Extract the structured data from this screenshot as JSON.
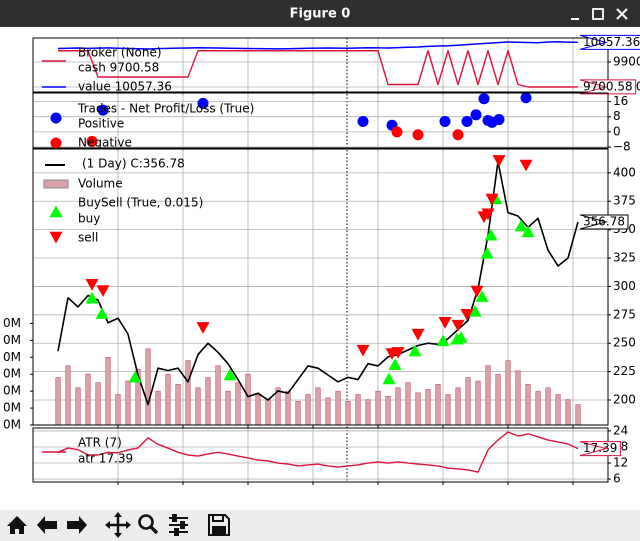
{
  "window_title": "Figure 0",
  "chart_data": [
    {
      "type": "line",
      "legend_title": "Broker (None)",
      "x": [
        0,
        2,
        4,
        6,
        8,
        10,
        12,
        14,
        16,
        18,
        20,
        22,
        24,
        26,
        28,
        30,
        32,
        34,
        36,
        38,
        40,
        42,
        44,
        46,
        48,
        50,
        52,
        54,
        56,
        58,
        60,
        62,
        64,
        66,
        68,
        70,
        72,
        74,
        76,
        78,
        80,
        82,
        84,
        86,
        88,
        90,
        92,
        94,
        96,
        98,
        100,
        102,
        104
      ],
      "xlim": [
        -5,
        110
      ],
      "xticks": [
        12,
        25,
        38,
        51,
        64,
        77,
        90,
        103
      ],
      "ylim": [
        9660,
        10092
      ],
      "yticks": [
        9700,
        9900
      ],
      "grid": true,
      "series": [
        {
          "name": "cash 9700.58",
          "color": "#dc143c",
          "end_label": true,
          "values": [
            9990,
            9990,
            9990,
            9990,
            9780,
            9780,
            9780,
            9780,
            9780,
            9780,
            9780,
            9780,
            9780,
            9780,
            9990,
            9990,
            9990,
            9990,
            9990,
            9990,
            9990,
            9990,
            9990,
            9990,
            9990,
            9990,
            9990,
            9990,
            9990,
            9990,
            9990,
            9990,
            9990,
            9720,
            9720,
            9720,
            9720,
            9990,
            9720,
            9990,
            9720,
            9990,
            9720,
            9990,
            9720,
            9990,
            9720,
            9700,
            9700,
            9700,
            9700,
            9700,
            9700.58
          ]
        },
        {
          "name": "value 10057.36",
          "color": "#0000ff",
          "end_label": true,
          "values": [
            10008,
            10010,
            10012,
            10009,
            10011,
            10013,
            10010,
            10008,
            10006,
            10004,
            10007,
            10009,
            10011,
            10012,
            10014,
            10013,
            10012,
            10010,
            10009,
            10008,
            10007,
            10006,
            10005,
            10006,
            10008,
            10010,
            10011,
            10012,
            10011,
            10010,
            10012,
            10014,
            10013,
            10012,
            10015,
            10018,
            10020,
            10025,
            10028,
            10030,
            10034,
            10040,
            10045,
            10050,
            10055,
            10060,
            10058,
            10056,
            10054,
            10060,
            10062,
            10059,
            10057.36
          ]
        }
      ]
    },
    {
      "type": "scatter",
      "legend_title": "Trades - Net Profit/Loss (True)",
      "xlim": [
        -5,
        110
      ],
      "xticks": [
        12,
        25,
        38,
        51,
        64,
        77,
        90,
        103
      ],
      "ylim": [
        -8.5,
        20.5
      ],
      "yticks": [
        {
          "value": -8,
          "label": "−8"
        },
        0,
        8,
        16
      ],
      "grid": true,
      "series": [
        {
          "name": "Positive",
          "color": "#0000ff",
          "x": [
            9,
            29,
            61,
            66.8,
            77.4,
            81.8,
            83.6,
            85.2,
            86,
            86.8,
            88.2,
            93.6
          ],
          "values": [
            11.5,
            15,
            5.5,
            3.5,
            5.5,
            5.5,
            9,
            17.5,
            6,
            5,
            6.5,
            18
          ]
        },
        {
          "name": "Negative",
          "color": "#ff0000",
          "x": [
            6.8,
            67.8,
            72,
            80
          ],
          "values": [
            -5,
            0,
            -1.5,
            -1.5
          ]
        }
      ]
    },
    {
      "type": "line",
      "buysell_title": "BuySell (True, 0.015)",
      "x": [
        0,
        2,
        4,
        6,
        8,
        10,
        12,
        14,
        16,
        18,
        20,
        22,
        24,
        26,
        28,
        30,
        32,
        34,
        36,
        38,
        40,
        42,
        44,
        46,
        48,
        50,
        52,
        54,
        56,
        58,
        60,
        62,
        64,
        66,
        68,
        70,
        72,
        74,
        76,
        78,
        80,
        82,
        84,
        86,
        88,
        90,
        92,
        94,
        96,
        98,
        100,
        102,
        104
      ],
      "xlim": [
        -5,
        110
      ],
      "xticks": [
        12,
        25,
        38,
        51,
        64,
        77,
        90,
        103
      ],
      "ylim": [
        178,
        421
      ],
      "yticks": [
        200,
        225,
        250,
        275,
        300,
        325,
        350,
        375,
        400
      ],
      "grid": true,
      "y2lim": [
        0,
        163
      ],
      "y2ticks": [
        {
          "value": 0,
          "label": "0M"
        },
        {
          "value": 10,
          "label": "0M"
        },
        {
          "value": 20,
          "label": "0M"
        },
        {
          "value": 30,
          "label": "0M"
        },
        {
          "value": 40,
          "label": "0M"
        },
        {
          "value": 50,
          "label": "0M"
        },
        {
          "value": 60,
          "label": "0M"
        }
      ],
      "series": [
        {
          "name": "(1 Day) C:356.78",
          "type": "line",
          "color": "#000000",
          "end_label": true,
          "values": [
            243,
            290,
            282,
            292,
            288,
            268,
            272,
            258,
            222,
            196,
            228,
            226,
            228,
            216,
            240,
            250,
            242,
            232,
            218,
            203,
            206,
            200,
            208,
            206,
            218,
            230,
            228,
            222,
            216,
            220,
            218,
            232,
            230,
            238,
            240,
            244,
            248,
            250,
            249,
            254,
            262,
            270,
            298,
            345,
            410,
            365,
            362,
            352,
            360,
            332,
            318,
            325,
            356.78
          ]
        },
        {
          "name": "Volume",
          "type": "bar",
          "axis": "y2",
          "color": "#d9a0a8",
          "values": [
            28,
            35,
            22,
            30,
            25,
            40,
            18,
            26,
            33,
            45,
            20,
            30,
            24,
            38,
            22,
            28,
            35,
            20,
            25,
            30,
            18,
            15,
            22,
            20,
            14,
            18,
            22,
            16,
            20,
            14,
            18,
            15,
            20,
            17,
            22,
            25,
            19,
            21,
            24,
            18,
            22,
            28,
            26,
            35,
            30,
            38,
            32,
            24,
            20,
            22,
            18,
            15,
            12
          ]
        },
        {
          "name": "buy",
          "type": "marker",
          "marker": "triangle-up",
          "color": "#00ff00",
          "x": [
            6.8,
            8.8,
            15.4,
            34.4,
            66.2,
            67.4,
            71.4,
            77,
            79.8,
            80.6,
            83.4,
            84.8,
            85.8,
            86.6,
            87.6,
            92.6,
            94
          ],
          "values": [
            289.5,
            276,
            220,
            222,
            218.5,
            231,
            243,
            252,
            253.5,
            255,
            278,
            291,
            329,
            345,
            377,
            353,
            348
          ]
        },
        {
          "name": "sell",
          "type": "marker",
          "marker": "triangle-down",
          "color": "#ff0000",
          "x": [
            6.8,
            9,
            29,
            61,
            66.8,
            68,
            72,
            77.4,
            80,
            81.8,
            83.8,
            85.2,
            86,
            86.8,
            88.2,
            93.6
          ],
          "values": [
            302,
            296.5,
            264,
            244,
            241,
            242,
            258,
            268.5,
            266,
            275.5,
            296,
            361.5,
            364,
            377,
            411,
            407
          ]
        }
      ]
    },
    {
      "type": "line",
      "legend_title": "ATR (7)",
      "x": [
        0,
        2,
        4,
        6,
        8,
        10,
        12,
        14,
        16,
        18,
        20,
        22,
        24,
        26,
        28,
        30,
        32,
        34,
        36,
        38,
        40,
        42,
        44,
        46,
        48,
        50,
        52,
        54,
        56,
        58,
        60,
        62,
        64,
        66,
        68,
        70,
        72,
        74,
        76,
        78,
        80,
        82,
        84,
        86,
        88,
        90,
        92,
        94,
        96,
        98,
        100,
        102,
        104
      ],
      "xlim": [
        -5,
        110
      ],
      "xticks": [
        12,
        25,
        38,
        51,
        64,
        77,
        90,
        103
      ],
      "ylim": [
        4.9,
        25.1
      ],
      "yticks": [
        6,
        12,
        18,
        24
      ],
      "grid": true,
      "series": [
        {
          "name": "atr 17.39",
          "color": "#dc143c",
          "end_label": true,
          "values": [
            16,
            17.6,
            17,
            15,
            15,
            16,
            15.8,
            16.9,
            17.6,
            21.4,
            19,
            17.6,
            16,
            15,
            14.6,
            15.4,
            16,
            15.4,
            14.6,
            13.9,
            13.1,
            12.8,
            12,
            11.6,
            10.9,
            11.3,
            11.6,
            10.9,
            10.5,
            10.9,
            11.3,
            12,
            12.4,
            12,
            12.4,
            12,
            11.6,
            11.3,
            10.9,
            10.1,
            9.8,
            9.4,
            8.6,
            16.9,
            20.6,
            23.6,
            22.1,
            22.9,
            21.8,
            20.6,
            19.9,
            19.1,
            17.39
          ]
        }
      ]
    }
  ]
}
